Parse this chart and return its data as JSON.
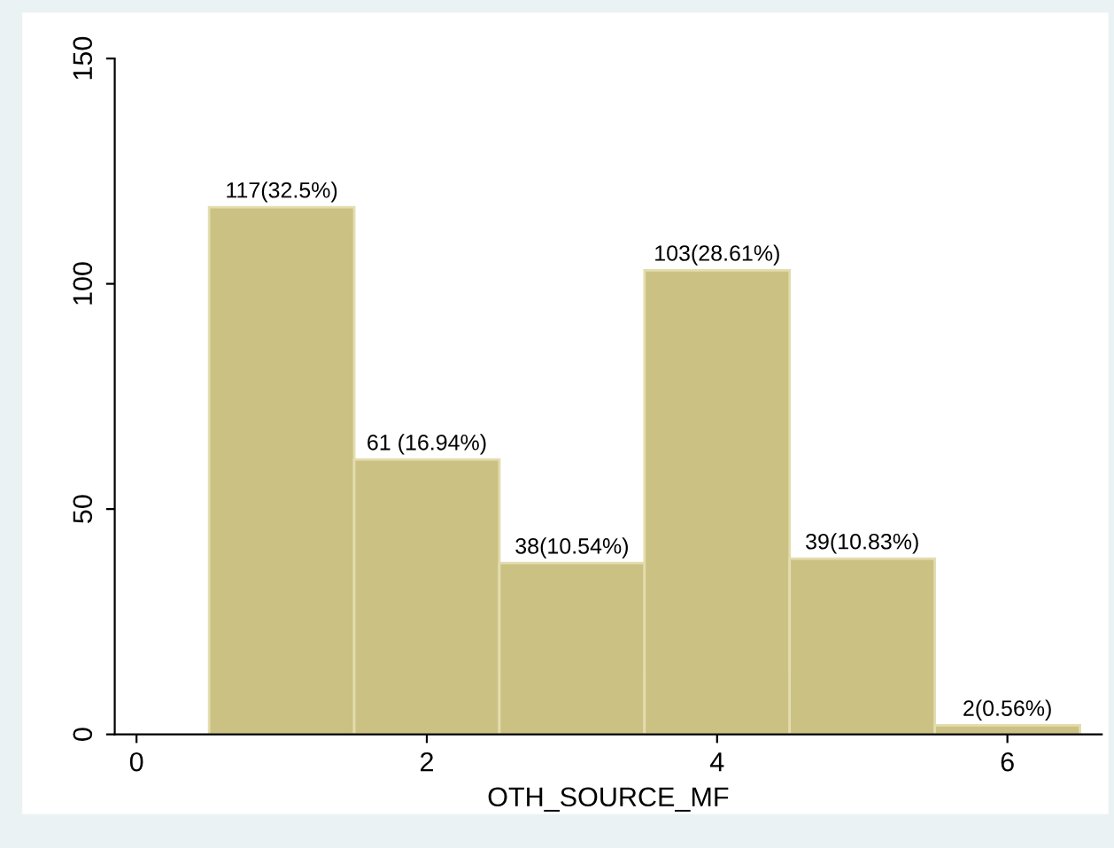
{
  "chart_data": {
    "type": "histogram",
    "xlabel": "OTH_SOURCE_MF",
    "bins": [
      0.5,
      1.5,
      2.5,
      3.5,
      4.5,
      5.5,
      6.5
    ],
    "values": [
      117,
      61,
      38,
      103,
      39,
      2
    ],
    "value_labels": [
      "117(32.5%)",
      "61 (16.94%)",
      "38(10.54%)",
      "103(28.61%)",
      "39(10.83%)",
      "2(0.56%)"
    ],
    "color": "#cbc183",
    "xlim": [
      -0.15,
      6.65
    ],
    "xticks": [
      0,
      2,
      4,
      6
    ],
    "ylim": [
      0,
      150
    ],
    "yticks": [
      0,
      50,
      100,
      150
    ],
    "grid": false
  }
}
